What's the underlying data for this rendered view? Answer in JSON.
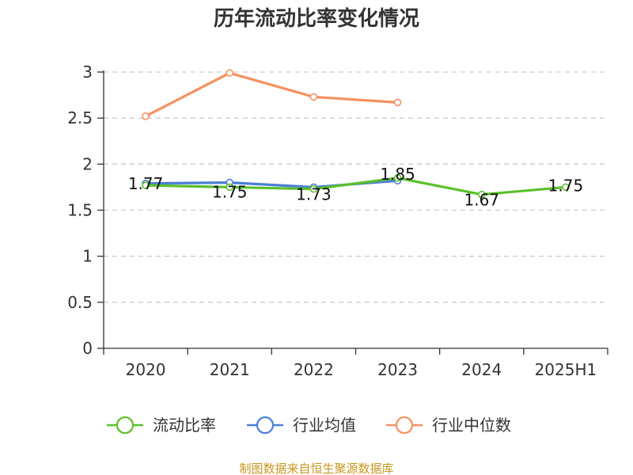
{
  "chart_data": {
    "type": "line",
    "title": "历年流动比率变化情况",
    "categories": [
      "2020",
      "2021",
      "2022",
      "2023",
      "2024",
      "2025H1"
    ],
    "ylim": [
      0,
      3
    ],
    "yticks": [
      "0",
      "0.5",
      "1",
      "1.5",
      "2",
      "2.5",
      "3"
    ],
    "grid": true,
    "legend_position": "bottom",
    "series": [
      {
        "name": "流动比率",
        "color": "#5bc02a",
        "values": [
          1.77,
          1.75,
          1.73,
          1.85,
          1.67,
          1.75
        ],
        "labels": [
          "1.77",
          "1.75",
          "1.73",
          "1.85",
          "1.67",
          "1.75"
        ]
      },
      {
        "name": "行业均值",
        "color": "#4a7fd6",
        "values": [
          1.79,
          1.8,
          1.75,
          1.82,
          null,
          null
        ]
      },
      {
        "name": "行业中位数",
        "color": "#f59160",
        "values": [
          2.52,
          2.99,
          2.73,
          2.67,
          null,
          null
        ]
      }
    ]
  },
  "source_note": "制图数据来自恒生聚源数据库",
  "source_color": "#c8961e"
}
